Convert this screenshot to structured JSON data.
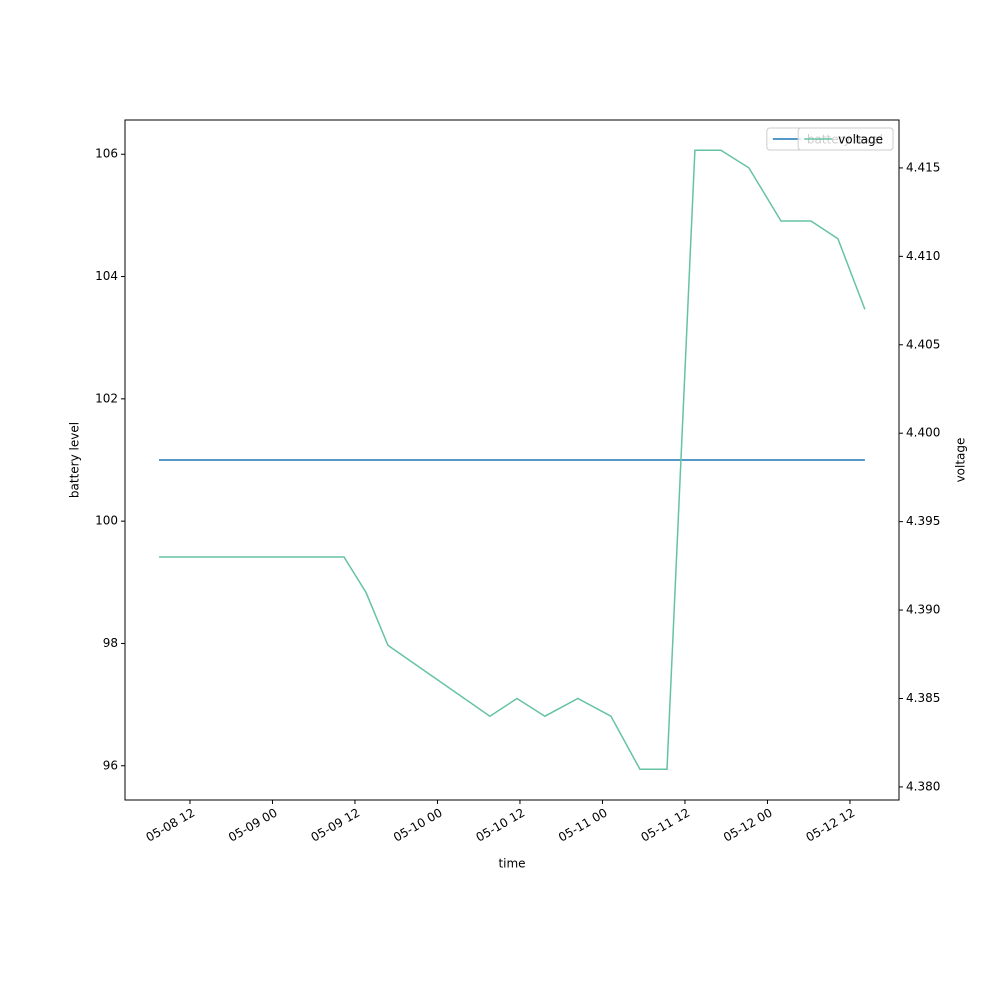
{
  "chart_data": {
    "type": "line",
    "xlabel": "time",
    "ylabel": "battery level",
    "y2label": "voltage",
    "legend": "upper right",
    "x": [
      "05-08 07:30",
      "05-09 10:24",
      "05-09 13:36",
      "05-09 16:48",
      "05-10 07:38",
      "05-10 11:34",
      "05-10 15:38",
      "05-10 20:26",
      "05-11 01:14",
      "05-11 05:27",
      "05-11 09:23",
      "05-11 13:27",
      "05-11 17:14",
      "05-11 21:18",
      "05-12 01:58",
      "05-12 06:20",
      "05-12 10:15",
      "05-12 14:10"
    ],
    "xlim": [
      "05-08 02:33",
      "05-12 19:08"
    ],
    "xticks": [
      {
        "value": "05-08 12:00",
        "label": "05-08 12"
      },
      {
        "value": "05-09 00:00",
        "label": "05-09 00"
      },
      {
        "value": "05-09 12:00",
        "label": "05-09 12"
      },
      {
        "value": "05-10 00:00",
        "label": "05-10 00"
      },
      {
        "value": "05-10 12:00",
        "label": "05-10 12"
      },
      {
        "value": "05-11 00:00",
        "label": "05-11 00"
      },
      {
        "value": "05-11 12:00",
        "label": "05-11 12"
      },
      {
        "value": "05-12 00:00",
        "label": "05-12 00"
      },
      {
        "value": "05-12 12:00",
        "label": "05-12 12"
      }
    ],
    "ylim": [
      95.44,
      106.56
    ],
    "yticks": [
      96,
      98,
      100,
      102,
      104,
      106
    ],
    "y2lim": [
      4.37926,
      4.41771
    ],
    "y2ticks": [
      {
        "value": 4.38,
        "label": "4.380"
      },
      {
        "value": 4.385,
        "label": "4.385"
      },
      {
        "value": 4.39,
        "label": "4.390"
      },
      {
        "value": 4.395,
        "label": "4.395"
      },
      {
        "value": 4.4,
        "label": "4.400"
      },
      {
        "value": 4.405,
        "label": "4.405"
      },
      {
        "value": 4.41,
        "label": "4.410"
      },
      {
        "value": 4.415,
        "label": "4.415"
      }
    ],
    "series": [
      {
        "name": "battery level",
        "color": "#1f77b4",
        "axis": "y",
        "values": [
          101,
          101,
          101,
          101,
          101,
          101,
          101,
          101,
          101,
          101,
          101,
          101,
          101,
          101,
          101,
          101,
          101,
          101
        ]
      },
      {
        "name": "voltage",
        "color": "#66c2a5",
        "axis": "y2",
        "values": [
          4.393,
          4.393,
          4.391,
          4.388,
          4.384,
          4.385,
          4.384,
          4.385,
          4.384,
          4.381,
          4.381,
          4.416,
          4.416,
          4.415,
          4.412,
          4.412,
          4.411,
          4.407
        ]
      }
    ]
  }
}
